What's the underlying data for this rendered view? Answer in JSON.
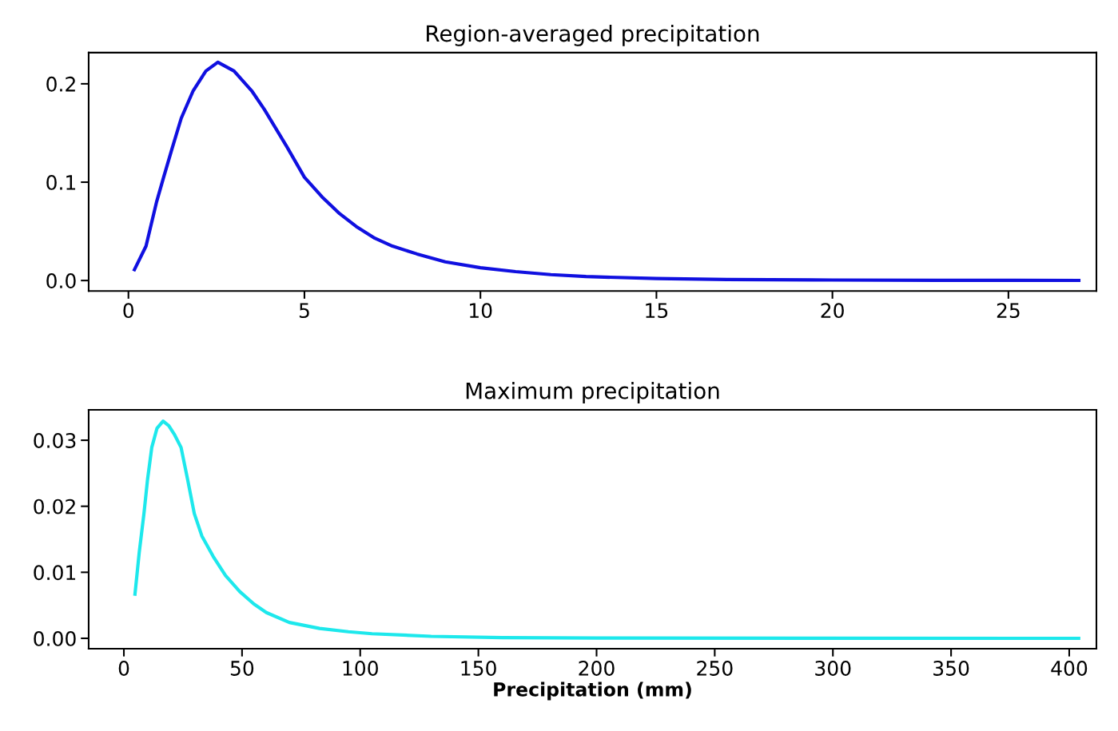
{
  "chart_data": [
    {
      "type": "line",
      "title": "Region-averaged precipitation",
      "xlim": [
        -1.13,
        27.5
      ],
      "ylim": [
        -0.0106,
        0.2317
      ],
      "xticks": [
        0,
        5,
        10,
        15,
        20,
        25
      ],
      "yticks": [
        {
          "value": 0,
          "label": "0.0"
        },
        0.1,
        0.2
      ],
      "grid": false,
      "legend": false,
      "series": [
        {
          "color": "#1010e0",
          "x": [
            0.17,
            0.5,
            0.8,
            1.0,
            1.23,
            1.5,
            1.84,
            2.2,
            2.54,
            3.0,
            3.5,
            3.86,
            4.5,
            5.0,
            5.5,
            6.0,
            6.47,
            7.0,
            7.5,
            8.2,
            9.0,
            10,
            11,
            12,
            13,
            15,
            17,
            20,
            23,
            27
          ],
          "values": [
            0.011,
            0.035,
            0.08,
            0.105,
            0.133,
            0.165,
            0.193,
            0.213,
            0.222,
            0.213,
            0.193,
            0.174,
            0.136,
            0.105,
            0.085,
            0.068,
            0.055,
            0.043,
            0.035,
            0.027,
            0.019,
            0.013,
            0.009,
            0.006,
            0.004,
            0.002,
            0.001,
            0.0005,
            0.0002,
            0.0001
          ]
        }
      ]
    },
    {
      "type": "line",
      "title": "Maximum precipitation",
      "xlabel": "Precipitation (mm)",
      "xlim": [
        -14.9,
        411.5
      ],
      "ylim": [
        -0.00157,
        0.0346
      ],
      "xticks": [
        0,
        50,
        100,
        150,
        200,
        250,
        300,
        350,
        400
      ],
      "yticks": [
        {
          "value": 0,
          "label": "0.00"
        },
        {
          "value": 0.01,
          "label": "0.01"
        },
        {
          "value": 0.02,
          "label": "0.02"
        },
        {
          "value": 0.03,
          "label": "0.03"
        }
      ],
      "grid": false,
      "legend": false,
      "series": [
        {
          "color": "#1de8ec",
          "x": [
            4.7,
            6.5,
            8.5,
            10,
            11.8,
            14,
            16.6,
            19,
            21.5,
            24.2,
            27,
            29.8,
            33,
            37.8,
            43,
            49,
            55,
            60.3,
            70,
            82.8,
            95,
            105,
            130,
            160,
            200,
            300,
            404
          ],
          "values": [
            0.0067,
            0.013,
            0.0189,
            0.024,
            0.0289,
            0.0318,
            0.0329,
            0.0322,
            0.0308,
            0.0289,
            0.024,
            0.0189,
            0.0155,
            0.0124,
            0.0095,
            0.0071,
            0.0052,
            0.0039,
            0.0024,
            0.0015,
            0.001,
            0.0007,
            0.0003,
            0.0001,
            5e-05,
            1e-05,
            0.0
          ]
        }
      ]
    }
  ]
}
